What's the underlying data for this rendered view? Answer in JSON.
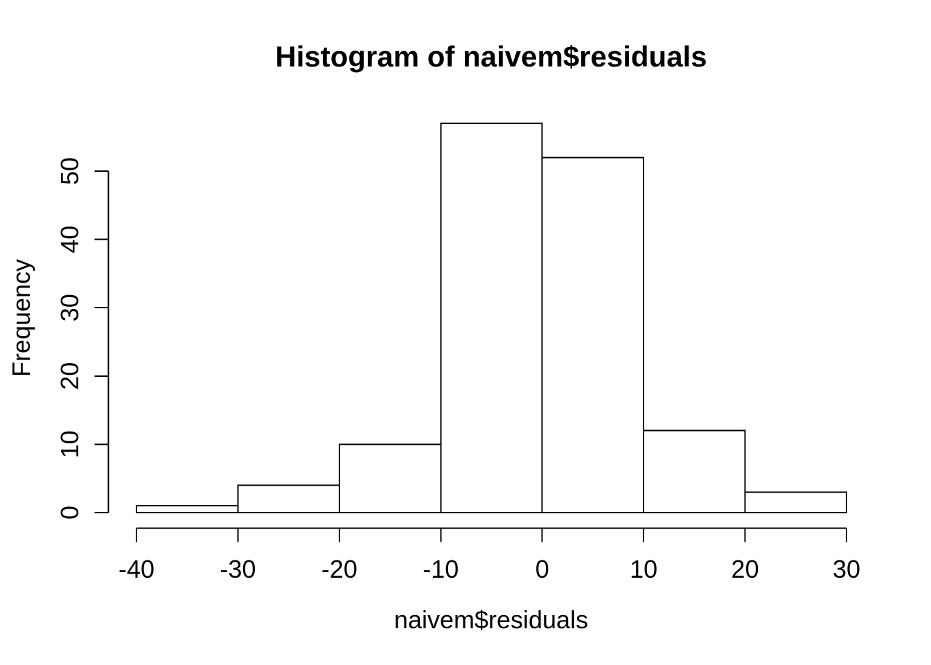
{
  "chart_data": {
    "type": "bar",
    "subtype": "histogram",
    "title": "Histogram of naivem$residuals",
    "xlabel": "naivem$residuals",
    "ylabel": "Frequency",
    "bin_edges": [
      -40,
      -30,
      -20,
      -10,
      0,
      10,
      20,
      30
    ],
    "counts": [
      1,
      4,
      10,
      57,
      52,
      12,
      3
    ],
    "x_ticks": [
      -40,
      -30,
      -20,
      -10,
      0,
      10,
      20,
      30
    ],
    "y_ticks": [
      0,
      10,
      20,
      30,
      40,
      50
    ],
    "xlim": [
      -40,
      30
    ],
    "ylim": [
      0,
      57
    ],
    "grid": false,
    "legend": null,
    "colors": {
      "background": "#ffffff",
      "bar_fill": "#ffffff",
      "bar_stroke": "#000000",
      "axis": "#000000",
      "text": "#000000"
    }
  }
}
